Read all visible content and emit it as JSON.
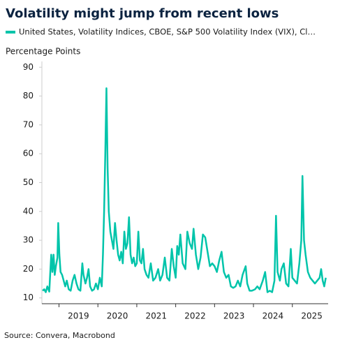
{
  "chart_data": {
    "type": "line",
    "title": "Volatility might jump from recent lows",
    "y_label": "Percentage Points",
    "source": "Source: Convera, Macrobond",
    "x": [
      2018.58,
      2018.62,
      2018.66,
      2018.7,
      2018.75,
      2018.78,
      2018.8,
      2018.83,
      2018.86,
      2018.89,
      2018.92,
      2018.96,
      2018.98,
      2019.01,
      2019.04,
      2019.08,
      2019.12,
      2019.16,
      2019.2,
      2019.25,
      2019.3,
      2019.35,
      2019.4,
      2019.45,
      2019.5,
      2019.55,
      2019.6,
      2019.63,
      2019.68,
      2019.72,
      2019.76,
      2019.8,
      2019.85,
      2019.9,
      2019.95,
      2020.0,
      2020.05,
      2020.1,
      2020.13,
      2020.16,
      2020.19,
      2020.22,
      2020.25,
      2020.28,
      2020.32,
      2020.36,
      2020.4,
      2020.44,
      2020.48,
      2020.52,
      2020.56,
      2020.6,
      2020.64,
      2020.68,
      2020.72,
      2020.76,
      2020.8,
      2020.84,
      2020.88,
      2020.92,
      2020.96,
      2021.0,
      2021.04,
      2021.08,
      2021.12,
      2021.16,
      2021.2,
      2021.25,
      2021.3,
      2021.36,
      2021.42,
      2021.48,
      2021.55,
      2021.6,
      2021.66,
      2021.72,
      2021.78,
      2021.84,
      2021.9,
      2021.95,
      2022.0,
      2022.04,
      2022.08,
      2022.12,
      2022.18,
      2022.25,
      2022.3,
      2022.36,
      2022.42,
      2022.46,
      2022.52,
      2022.58,
      2022.64,
      2022.7,
      2022.76,
      2022.82,
      2022.88,
      2022.94,
      2023.0,
      2023.06,
      2023.12,
      2023.18,
      2023.24,
      2023.3,
      2023.36,
      2023.42,
      2023.48,
      2023.54,
      2023.6,
      2023.66,
      2023.72,
      2023.8,
      2023.84,
      2023.9,
      2023.96,
      2024.04,
      2024.1,
      2024.16,
      2024.24,
      2024.3,
      2024.36,
      2024.42,
      2024.48,
      2024.54,
      2024.58,
      2024.62,
      2024.68,
      2024.72,
      2024.78,
      2024.84,
      2024.9,
      2024.96,
      2025.0,
      2025.06,
      2025.12,
      2025.18,
      2025.23,
      2025.26,
      2025.3,
      2025.34,
      2025.4,
      2025.46,
      2025.52,
      2025.58,
      2025.64,
      2025.7,
      2025.74,
      2025.78,
      2025.82,
      2025.86
    ],
    "series": [
      {
        "name": "United States, Volatility Indices, CBOE, S&P 500 Volatility Index (VIX), Cl…",
        "color": "#00c4aa",
        "values": [
          12.5,
          13,
          12,
          14,
          12.2,
          20,
          25,
          19,
          25,
          18,
          21,
          24,
          36,
          25,
          19,
          18,
          16,
          14,
          16,
          13,
          12.5,
          16,
          18,
          15,
          13,
          12.5,
          22,
          18,
          15,
          17,
          20,
          14,
          12.5,
          13,
          15,
          13,
          17,
          14,
          25,
          40,
          60,
          82.7,
          55,
          40,
          33,
          30,
          27,
          36,
          30,
          25,
          23,
          26,
          22,
          33,
          27,
          29,
          38,
          25,
          22,
          24,
          21,
          22,
          33,
          23,
          22,
          27,
          20,
          18,
          17,
          22,
          16,
          17,
          20,
          16,
          18,
          24,
          17,
          16,
          27,
          21,
          17,
          28,
          25,
          32,
          22,
          20,
          33,
          29,
          27,
          34,
          25,
          20,
          24,
          32,
          31,
          26,
          21,
          22,
          21,
          19,
          23,
          26,
          19,
          17,
          18,
          14,
          13.5,
          14,
          16,
          14,
          18,
          21,
          15,
          12.5,
          12.5,
          13,
          14,
          13,
          16,
          19,
          12,
          12.5,
          12,
          16,
          38.5,
          19,
          16,
          20,
          22,
          15,
          14,
          27,
          17,
          16,
          15,
          22,
          30,
          52.3,
          30,
          25,
          19,
          17,
          16,
          15,
          16,
          17,
          20,
          16,
          14,
          17
        ]
      }
    ],
    "xlim": [
      2018.56,
      2025.92
    ],
    "xticks": [
      {
        "value": 2019,
        "label": "2019"
      },
      {
        "value": 2020,
        "label": "2020"
      },
      {
        "value": 2021,
        "label": "2021"
      },
      {
        "value": 2022,
        "label": "2022"
      },
      {
        "value": 2023,
        "label": "2023"
      },
      {
        "value": 2024,
        "label": "2024"
      },
      {
        "value": 2025,
        "label": "2025"
      }
    ],
    "ylim": [
      8,
      92
    ],
    "yticks": [
      10,
      20,
      30,
      40,
      50,
      60,
      70,
      80,
      90
    ]
  }
}
